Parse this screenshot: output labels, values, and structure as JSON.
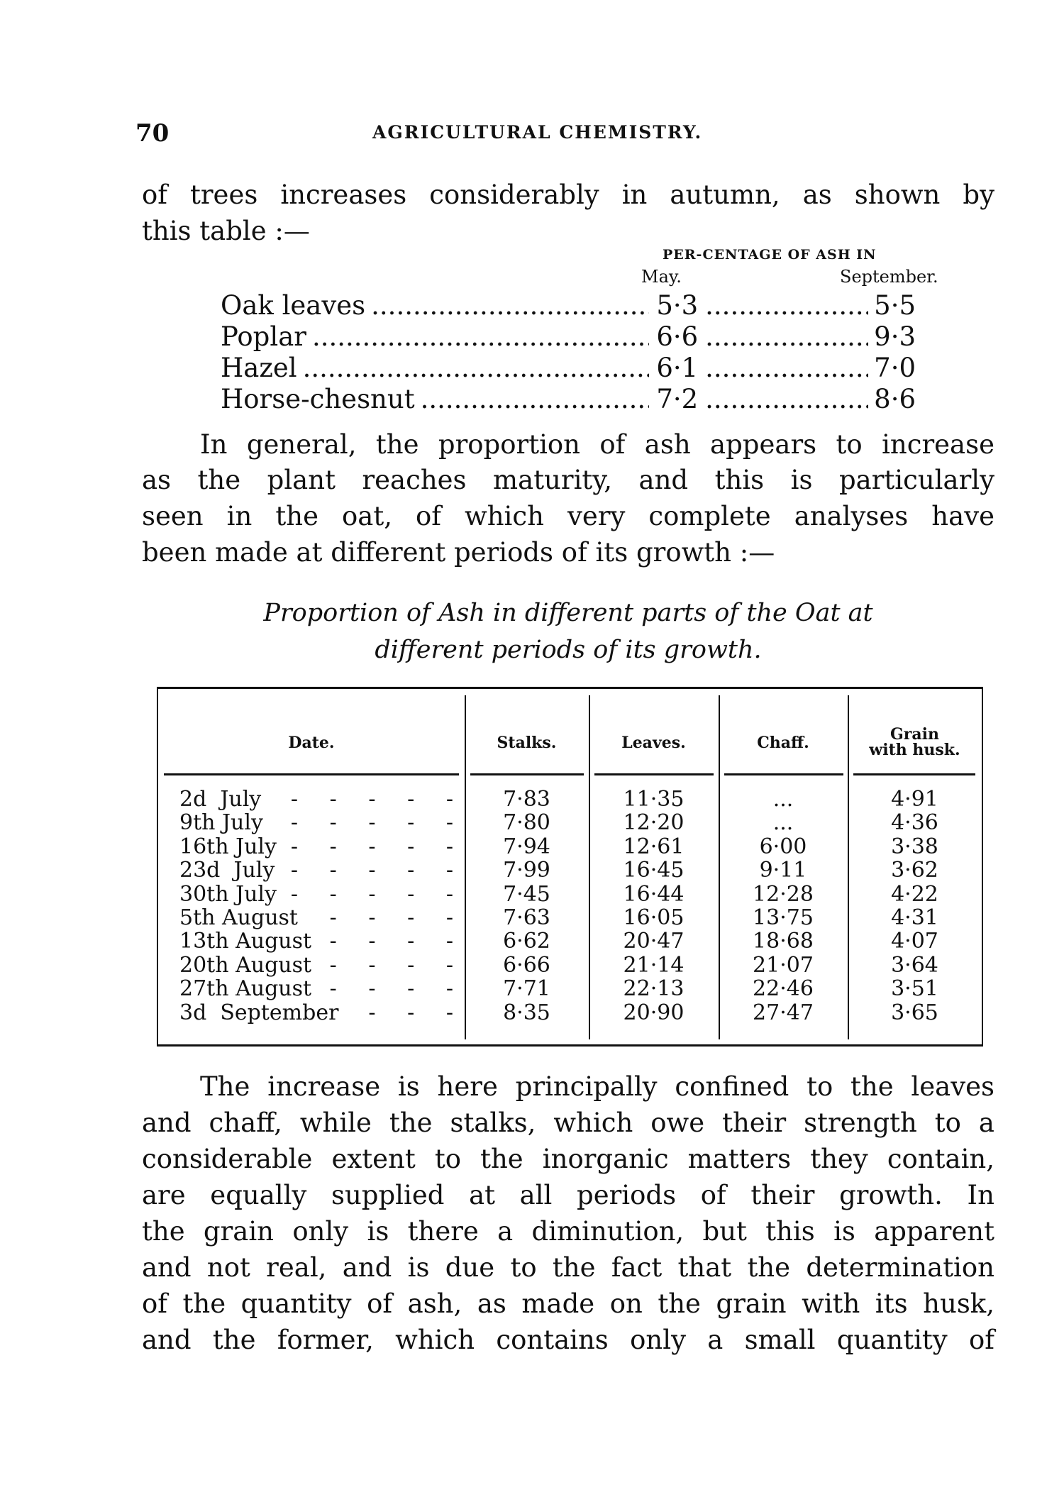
{
  "header": {
    "page_number": "70",
    "running_title": "AGRICULTURAL CHEMISTRY."
  },
  "para1": [
    "of trees increases considerably in autumn, as shown by",
    "this table :—"
  ],
  "ash_table": {
    "heading": "PER-CENTAGE OF ASH IN",
    "columns": [
      "May.",
      "September."
    ],
    "rows": [
      {
        "name": "Oak leaves",
        "may": "5·3",
        "september": "5·5"
      },
      {
        "name": "Poplar",
        "may": "6·6",
        "september": "9·3"
      },
      {
        "name": "Hazel",
        "may": "6·1",
        "september": "7·0"
      },
      {
        "name": "Horse-chesnut",
        "may": "7·2",
        "september": "8·6"
      }
    ]
  },
  "para2": [
    "In general, the proportion of ash appears to increase",
    "as the plant reaches maturity, and this is particularly",
    "seen in the oat, of which very complete analyses have",
    "been made at different periods of its growth :—"
  ],
  "caption": [
    "Proportion of Ash in different parts of the Oat at",
    "different periods of its growth."
  ],
  "oat_table": {
    "headers": [
      "Date.",
      "Stalks.",
      "Leaves.",
      "Chaff.",
      "Grain",
      "with husk."
    ],
    "rows": [
      {
        "date": "2d  July",
        "stalks": "7·83",
        "leaves": "11·35",
        "chaff": "...",
        "grain": "4·91"
      },
      {
        "date": "9th July",
        "stalks": "7·80",
        "leaves": "12·20",
        "chaff": "...",
        "grain": "4·36"
      },
      {
        "date": "16th July",
        "stalks": "7·94",
        "leaves": "12·61",
        "chaff": "6·00",
        "grain": "3·38"
      },
      {
        "date": "23d  July",
        "stalks": "7·99",
        "leaves": "16·45",
        "chaff": "9·11",
        "grain": "3·62"
      },
      {
        "date": "30th July",
        "stalks": "7·45",
        "leaves": "16·44",
        "chaff": "12·28",
        "grain": "4·22"
      },
      {
        "date": "5th August",
        "stalks": "7·63",
        "leaves": "16·05",
        "chaff": "13·75",
        "grain": "4·31"
      },
      {
        "date": "13th August",
        "stalks": "6·62",
        "leaves": "20·47",
        "chaff": "18·68",
        "grain": "4·07"
      },
      {
        "date": "20th August",
        "stalks": "6·66",
        "leaves": "21·14",
        "chaff": "21·07",
        "grain": "3·64"
      },
      {
        "date": "27th August",
        "stalks": "7·71",
        "leaves": "22·13",
        "chaff": "22·46",
        "grain": "3·51"
      },
      {
        "date": "3d  September",
        "stalks": "8·35",
        "leaves": "20·90",
        "chaff": "27·47",
        "grain": "3·65"
      }
    ]
  },
  "para3": [
    "The increase is here principally confined to the leaves",
    "and chaff, while the stalks, which owe their strength to a",
    "considerable extent to the inorganic matters they contain,",
    "are equally supplied at all periods of their growth.  In",
    "the grain only is there a diminution, but this is apparent",
    "and not real, and is due to the fact that the determination",
    "of the quantity of ash, as made on the grain with its husk,",
    "and the former, which contains only a small quantity of"
  ]
}
